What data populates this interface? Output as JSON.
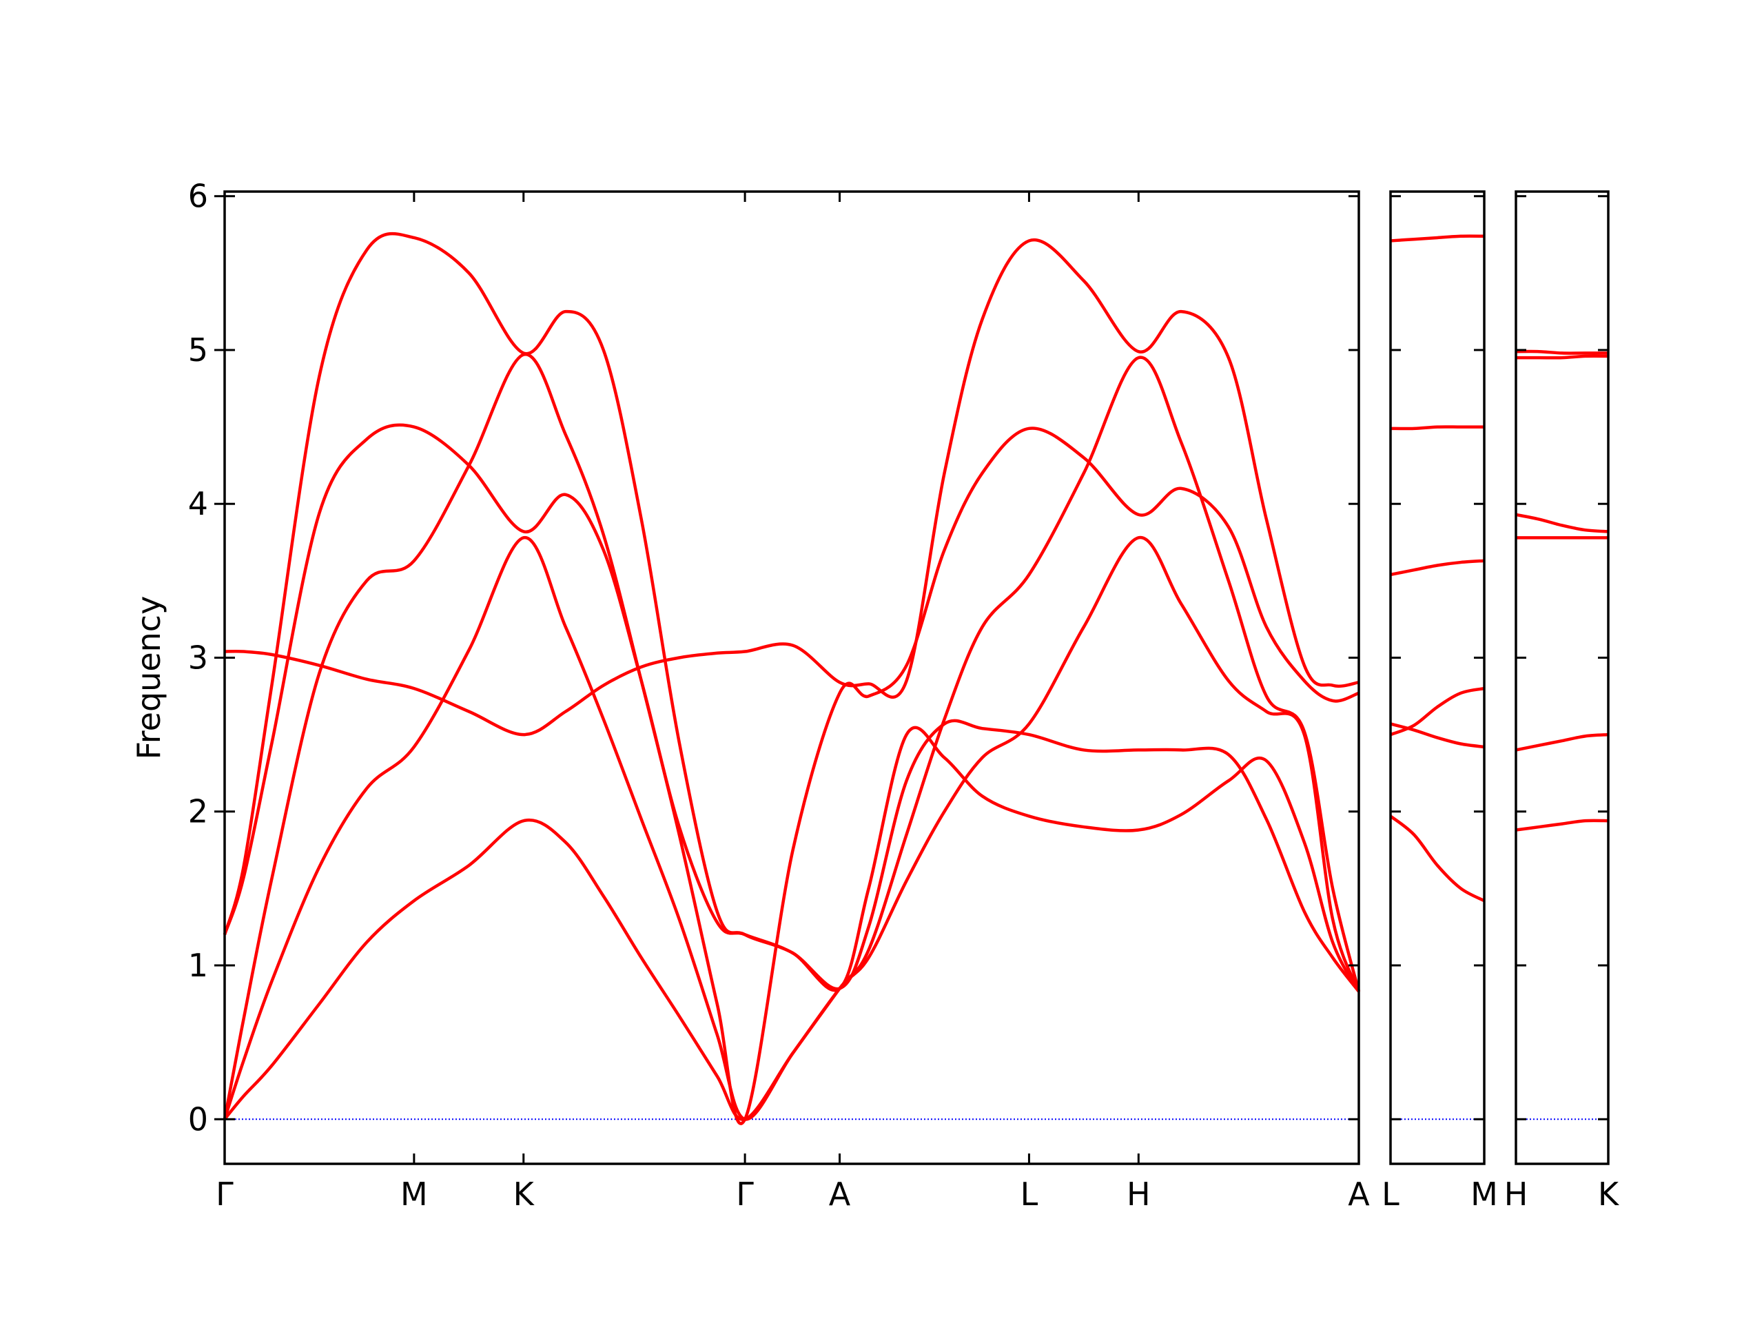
{
  "chart_data": [
    {
      "type": "line",
      "ylabel": "Frequency",
      "x": [
        0,
        0.1,
        0.25,
        0.5,
        0.75,
        1.0,
        1.29,
        1.578,
        1.8,
        2.0,
        2.2,
        2.4,
        2.6,
        2.747,
        3.0,
        3.247,
        3.4,
        3.6,
        3.8,
        4.0,
        4.247,
        4.536,
        4.825,
        5.05,
        5.3,
        5.5,
        5.7,
        5.85,
        5.988
      ],
      "xlim": [
        0,
        5.988
      ],
      "xticks": [
        {
          "value": 0,
          "label": "Γ"
        },
        {
          "value": 1.0,
          "label": "M"
        },
        {
          "value": 1.578,
          "label": "K"
        },
        {
          "value": 2.747,
          "label": "Γ"
        },
        {
          "value": 3.247,
          "label": "A"
        },
        {
          "value": 4.247,
          "label": "L"
        },
        {
          "value": 4.825,
          "label": "H"
        },
        {
          "value": 5.988,
          "label": "A"
        }
      ],
      "ylim": [
        -0.29,
        6.03
      ],
      "yticks": [
        0,
        1,
        2,
        3,
        4,
        5,
        6
      ],
      "hline": {
        "y": 0,
        "color": "#0000ff",
        "style": "dotted"
      },
      "series": [
        {
          "color": "#ff0000",
          "values": [
            0,
            0.15,
            0.35,
            0.75,
            1.15,
            1.42,
            1.65,
            1.94,
            1.8,
            1.45,
            1.05,
            0.67,
            0.28,
            0,
            0.43,
            0.85,
            1.05,
            1.55,
            2.0,
            2.35,
            2.57,
            3.2,
            3.78,
            3.35,
            2.85,
            2.65,
            2.5,
            1.3,
            0.83
          ]
        },
        {
          "color": "#ff0000",
          "values": [
            0,
            0.38,
            0.9,
            1.64,
            2.15,
            2.42,
            3.05,
            3.78,
            3.2,
            2.6,
            1.95,
            1.3,
            0.55,
            0,
            0.43,
            0.85,
            1.1,
            1.85,
            2.6,
            3.2,
            3.54,
            4.2,
            4.95,
            4.4,
            3.5,
            2.75,
            2.52,
            1.5,
            0.83
          ]
        },
        {
          "color": "#ff0000",
          "values": [
            0,
            0.65,
            1.57,
            2.9,
            3.5,
            3.63,
            4.25,
            4.97,
            4.45,
            3.8,
            2.85,
            1.85,
            0.75,
            0,
            1.75,
            2.77,
            2.75,
            2.95,
            3.7,
            4.2,
            4.49,
            4.3,
            3.93,
            4.1,
            3.85,
            3.2,
            2.85,
            2.72,
            2.77
          ]
        },
        {
          "color": "#ff0000",
          "values": [
            1.2,
            1.57,
            2.45,
            3.94,
            4.42,
            4.5,
            4.25,
            3.82,
            4.06,
            3.7,
            2.85,
            1.9,
            1.28,
            1.2,
            1.08,
            0.85,
            1.5,
            2.5,
            2.35,
            2.1,
            1.97,
            1.9,
            1.88,
            1.98,
            2.2,
            2.33,
            1.8,
            1.15,
            0.83
          ]
        },
        {
          "color": "#ff0000",
          "values": [
            1.2,
            1.64,
            2.83,
            4.83,
            5.65,
            5.73,
            5.5,
            4.98,
            5.25,
            5.0,
            3.9,
            2.45,
            1.35,
            1.2,
            1.08,
            0.85,
            1.25,
            2.2,
            2.57,
            2.54,
            2.5,
            2.4,
            2.4,
            2.4,
            2.37,
            1.95,
            1.35,
            1.05,
            0.83
          ]
        },
        {
          "color": "#ff0000",
          "values": [
            3.04,
            3.04,
            3.02,
            2.95,
            2.86,
            2.8,
            2.65,
            2.5,
            2.65,
            2.82,
            2.94,
            3.0,
            3.03,
            3.04,
            3.08,
            2.84,
            2.83,
            2.85,
            4.2,
            5.2,
            5.71,
            5.45,
            4.99,
            5.25,
            4.95,
            3.9,
            2.95,
            2.82,
            2.84
          ]
        }
      ]
    },
    {
      "type": "line",
      "x": [
        0,
        0.25,
        0.5,
        0.75,
        1
      ],
      "xlim": [
        0,
        1
      ],
      "xticks": [
        {
          "value": 0,
          "label": "L"
        },
        {
          "value": 1,
          "label": "M"
        }
      ],
      "ylim": [
        -0.29,
        6.03
      ],
      "yticks": [
        0,
        1,
        2,
        3,
        4,
        5,
        6
      ],
      "hline": {
        "y": 0,
        "color": "#0000ff",
        "style": "dotted"
      },
      "series": [
        {
          "color": "#ff0000",
          "values": [
            1.97,
            1.85,
            1.65,
            1.5,
            1.42
          ]
        },
        {
          "color": "#ff0000",
          "values": [
            2.57,
            2.53,
            2.48,
            2.44,
            2.42
          ]
        },
        {
          "color": "#ff0000",
          "values": [
            2.5,
            2.56,
            2.68,
            2.77,
            2.8
          ]
        },
        {
          "color": "#ff0000",
          "values": [
            3.54,
            3.57,
            3.6,
            3.62,
            3.63
          ]
        },
        {
          "color": "#ff0000",
          "values": [
            4.49,
            4.49,
            4.5,
            4.5,
            4.5
          ]
        },
        {
          "color": "#ff0000",
          "values": [
            5.71,
            5.72,
            5.73,
            5.74,
            5.74
          ]
        }
      ]
    },
    {
      "type": "line",
      "x": [
        0,
        0.25,
        0.5,
        0.75,
        1
      ],
      "xlim": [
        0,
        1
      ],
      "xticks": [
        {
          "value": 0,
          "label": "H"
        },
        {
          "value": 1,
          "label": "K"
        }
      ],
      "ylim": [
        -0.29,
        6.03
      ],
      "yticks": [
        0,
        1,
        2,
        3,
        4,
        5,
        6
      ],
      "hline": {
        "y": 0,
        "color": "#0000ff",
        "style": "dotted"
      },
      "series": [
        {
          "color": "#ff0000",
          "values": [
            1.88,
            1.9,
            1.92,
            1.94,
            1.94
          ]
        },
        {
          "color": "#ff0000",
          "values": [
            2.4,
            2.43,
            2.46,
            2.49,
            2.5
          ]
        },
        {
          "color": "#ff0000",
          "values": [
            3.78,
            3.78,
            3.78,
            3.78,
            3.78
          ]
        },
        {
          "color": "#ff0000",
          "values": [
            3.93,
            3.9,
            3.86,
            3.83,
            3.82
          ]
        },
        {
          "color": "#ff0000",
          "values": [
            4.95,
            4.95,
            4.95,
            4.96,
            4.96
          ]
        },
        {
          "color": "#ff0000",
          "values": [
            4.99,
            4.99,
            4.98,
            4.98,
            4.98
          ]
        }
      ]
    }
  ]
}
